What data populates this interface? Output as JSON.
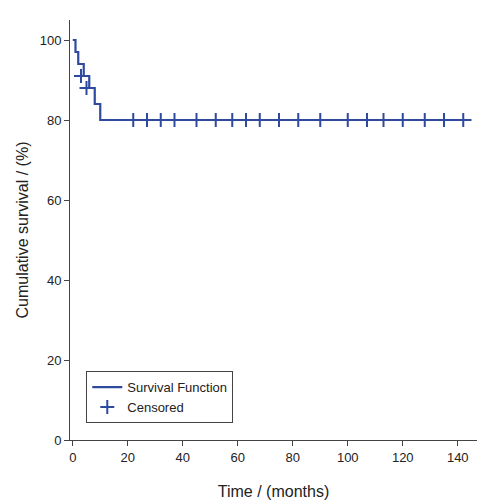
{
  "chart_data": {
    "type": "line",
    "xlabel": "Time / (months)",
    "ylabel": "Cumulative survival / (%)",
    "xlim": [
      -1,
      147
    ],
    "ylim": [
      0,
      105
    ],
    "xticks": [
      0,
      20,
      40,
      60,
      80,
      100,
      120,
      140
    ],
    "yticks": [
      0,
      20,
      40,
      60,
      80,
      100
    ],
    "grid": false,
    "legend": "lower left",
    "series": [
      {
        "name": "Survival Function",
        "type": "step",
        "color": "#2E4A9E",
        "x": [
          0,
          1,
          1,
          2,
          2,
          4,
          4,
          6,
          6,
          8,
          8,
          10,
          10,
          20,
          20,
          145
        ],
        "values": [
          100,
          100,
          97,
          97,
          94,
          94,
          91,
          91,
          88,
          88,
          84,
          84,
          80,
          80,
          80,
          80
        ]
      },
      {
        "name": "Censored",
        "type": "scatter",
        "marker": "+",
        "color": "#2E4A9E",
        "x": [
          3,
          5,
          22,
          27,
          32,
          37,
          45,
          52,
          58,
          63,
          68,
          75,
          82,
          90,
          100,
          107,
          113,
          120,
          128,
          135,
          142
        ],
        "values": [
          91,
          88,
          80,
          80,
          80,
          80,
          80,
          80,
          80,
          80,
          80,
          80,
          80,
          80,
          80,
          80,
          80,
          80,
          80,
          80,
          80
        ]
      }
    ]
  }
}
